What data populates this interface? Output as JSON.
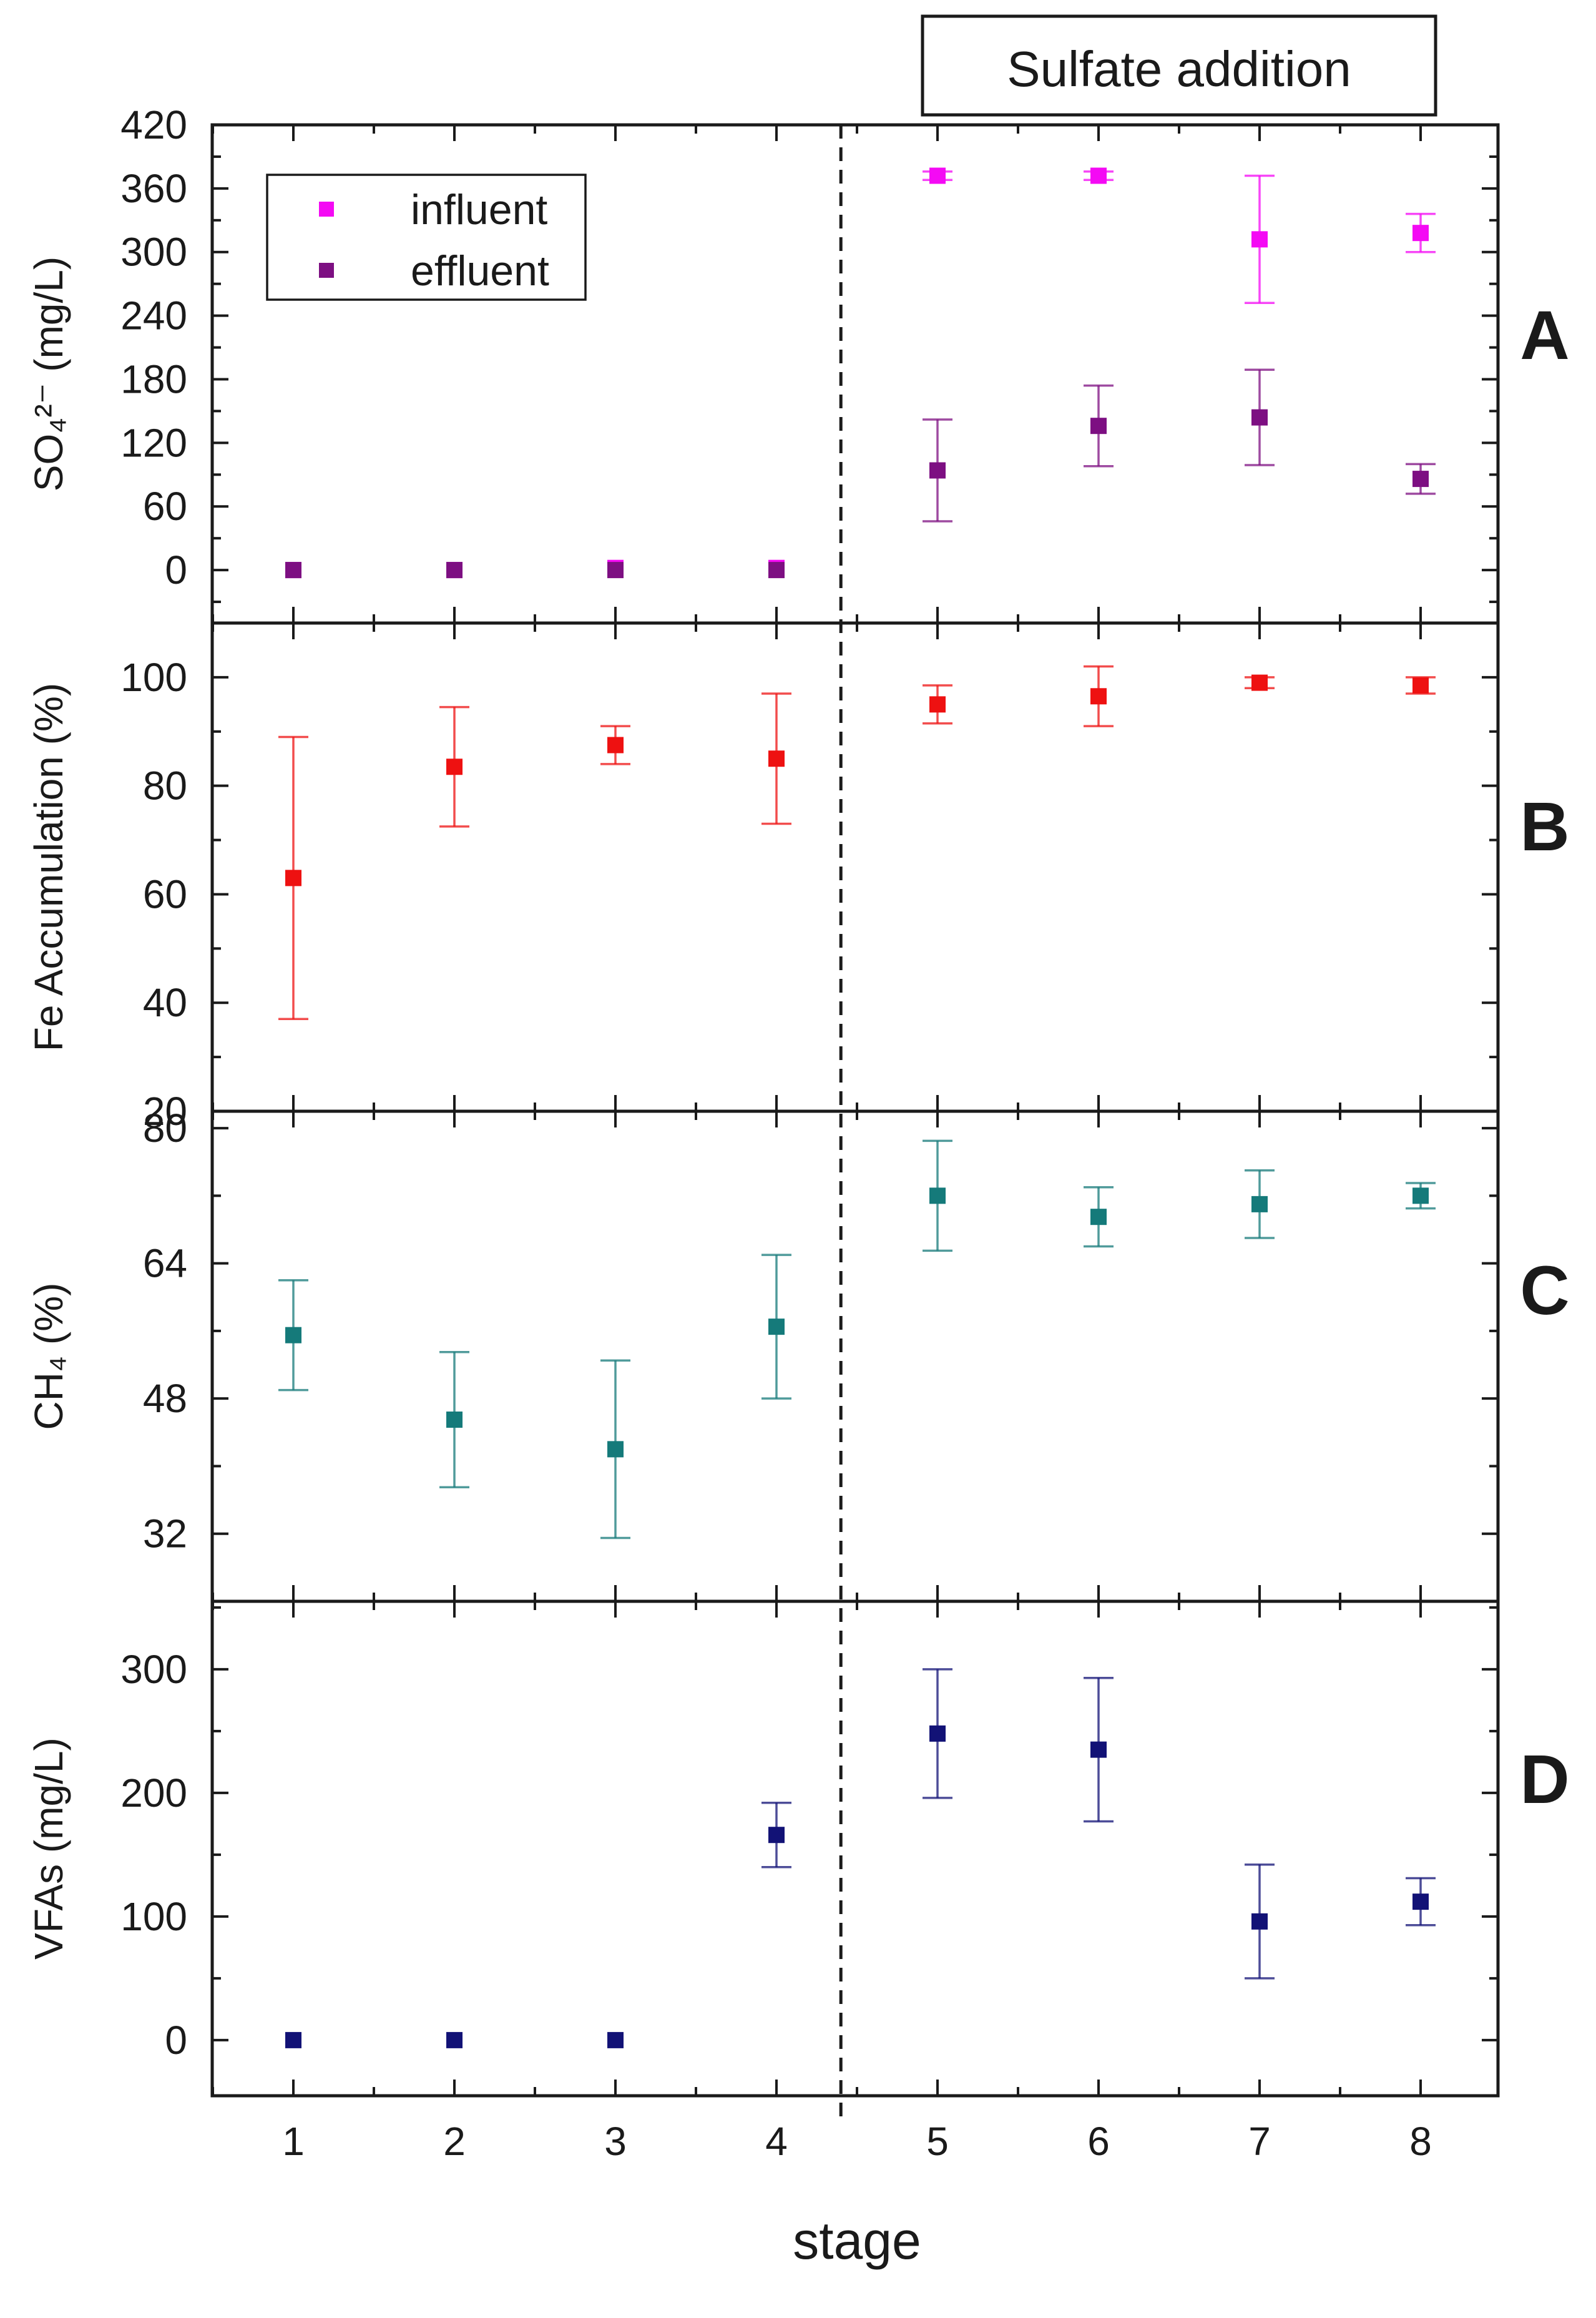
{
  "banner": {
    "label": "Sulfate addition"
  },
  "x_axis": {
    "label": "stage",
    "ticks": [
      "1",
      "2",
      "3",
      "4",
      "5",
      "6",
      "7",
      "8"
    ]
  },
  "divider": {
    "stage": 4.4,
    "style": "dashed"
  },
  "chart_data": [
    {
      "type": "scatter",
      "panel": "A",
      "ylabel": "SO₄²⁻ (mg/L)",
      "ylim": [
        -50,
        420
      ],
      "yticks": [
        0,
        60,
        120,
        180,
        240,
        300,
        360,
        420
      ],
      "legend": {
        "placement": "top-left",
        "entries": [
          "influent",
          "effluent"
        ]
      },
      "x": [
        1,
        2,
        3,
        4,
        5,
        6,
        7,
        8
      ],
      "series": [
        {
          "name": "influent",
          "color": "#f40af4",
          "values": [
            0,
            0,
            2,
            2,
            372,
            372,
            312,
            318
          ],
          "errors": [
            0,
            0,
            0,
            0,
            4,
            4,
            60,
            18
          ]
        },
        {
          "name": "effluent",
          "color": "#7d0f82",
          "values": [
            0,
            0,
            0,
            0,
            94,
            136,
            144,
            86
          ],
          "errors": [
            0,
            0,
            0,
            0,
            48,
            38,
            45,
            14
          ]
        }
      ]
    },
    {
      "type": "scatter",
      "panel": "B",
      "ylabel": "Fe Accumulation (%)",
      "ylim": [
        20,
        110
      ],
      "yticks": [
        20,
        40,
        60,
        80,
        100
      ],
      "x": [
        1,
        2,
        3,
        4,
        5,
        6,
        7,
        8
      ],
      "series": [
        {
          "name": "Fe Accumulation",
          "color": "#ee1111",
          "values": [
            63,
            83.5,
            87.5,
            85,
            95,
            96.5,
            99,
            98.5
          ],
          "errors": [
            26,
            11,
            3.5,
            12,
            3.5,
            5.5,
            1,
            1.5
          ]
        }
      ]
    },
    {
      "type": "scatter",
      "panel": "C",
      "ylabel": "CH₄ (%)",
      "ylim": [
        24,
        82
      ],
      "yticks": [
        32,
        48,
        64,
        80
      ],
      "x": [
        1,
        2,
        3,
        4,
        5,
        6,
        7,
        8
      ],
      "series": [
        {
          "name": "CH4",
          "color": "#157a7a",
          "values": [
            55.5,
            45.5,
            42,
            56.5,
            72,
            69.5,
            71,
            72
          ],
          "errors": [
            6.5,
            8,
            10.5,
            8.5,
            6.5,
            3.5,
            4,
            1.5
          ]
        }
      ]
    },
    {
      "type": "scatter",
      "panel": "D",
      "ylabel": "VFAs (mg/L)",
      "ylim": [
        -45,
        355
      ],
      "yticks": [
        0,
        100,
        200,
        300
      ],
      "x": [
        1,
        2,
        3,
        4,
        5,
        6,
        7,
        8
      ],
      "series": [
        {
          "name": "VFAs",
          "color": "#121276",
          "values": [
            0,
            0,
            0,
            166,
            248,
            235,
            96,
            112
          ],
          "errors": [
            0,
            0,
            0,
            26,
            52,
            58,
            46,
            19
          ]
        }
      ]
    }
  ]
}
